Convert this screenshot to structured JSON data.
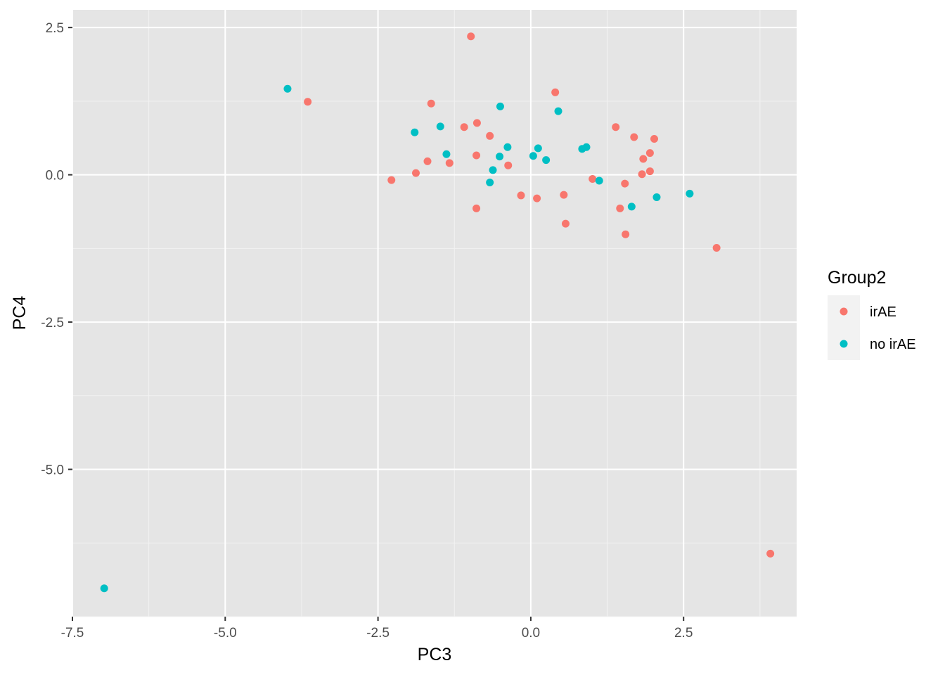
{
  "chart_data": {
    "type": "scatter",
    "xlabel": "PC3",
    "ylabel": "PC4",
    "xlim": [
      -7.5,
      4.35
    ],
    "ylim": [
      -7.5,
      2.8
    ],
    "x_ticks": [
      -7.5,
      -5.0,
      -2.5,
      0.0,
      2.5
    ],
    "x_tick_labels": [
      "-7.5",
      "-5.0",
      "-2.5",
      "0.0",
      "2.5"
    ],
    "y_ticks": [
      2.5,
      0.0,
      -2.5,
      -5.0
    ],
    "y_tick_labels": [
      "2.5",
      "0.0",
      "-2.5",
      "-5.0"
    ],
    "grid": true,
    "background": "#e5e5e5",
    "legend": {
      "title": "Group2",
      "position": "right"
    },
    "series": [
      {
        "name": "irAE",
        "color": "#f8766d",
        "points": [
          [
            -0.98,
            2.35
          ],
          [
            -3.65,
            1.24
          ],
          [
            -1.63,
            1.21
          ],
          [
            0.4,
            1.4
          ],
          [
            -1.09,
            0.81
          ],
          [
            -0.88,
            0.88
          ],
          [
            -0.67,
            0.66
          ],
          [
            1.39,
            0.81
          ],
          [
            1.69,
            0.64
          ],
          [
            2.02,
            0.61
          ],
          [
            -0.89,
            0.33
          ],
          [
            -1.69,
            0.23
          ],
          [
            -1.33,
            0.2
          ],
          [
            -0.37,
            0.16
          ],
          [
            1.84,
            0.27
          ],
          [
            1.95,
            0.37
          ],
          [
            1.82,
            0.01
          ],
          [
            1.95,
            0.06
          ],
          [
            -2.28,
            -0.09
          ],
          [
            -1.88,
            0.03
          ],
          [
            1.01,
            -0.07
          ],
          [
            1.54,
            -0.15
          ],
          [
            -0.16,
            -0.35
          ],
          [
            0.1,
            -0.4
          ],
          [
            0.54,
            -0.34
          ],
          [
            1.46,
            -0.57
          ],
          [
            -0.89,
            -0.57
          ],
          [
            0.57,
            -0.83
          ],
          [
            1.55,
            -1.01
          ],
          [
            3.04,
            -1.24
          ],
          [
            3.92,
            -6.43
          ]
        ]
      },
      {
        "name": "no irAE",
        "color": "#00bfc4",
        "points": [
          [
            -3.98,
            1.46
          ],
          [
            -0.5,
            1.16
          ],
          [
            0.45,
            1.08
          ],
          [
            -1.9,
            0.72
          ],
          [
            -1.48,
            0.82
          ],
          [
            -0.38,
            0.47
          ],
          [
            0.12,
            0.45
          ],
          [
            0.84,
            0.44
          ],
          [
            0.91,
            0.47
          ],
          [
            -1.38,
            0.35
          ],
          [
            -0.51,
            0.31
          ],
          [
            0.04,
            0.32
          ],
          [
            0.25,
            0.25
          ],
          [
            -0.62,
            0.08
          ],
          [
            -0.67,
            -0.13
          ],
          [
            1.12,
            -0.1
          ],
          [
            1.65,
            -0.54
          ],
          [
            2.06,
            -0.38
          ],
          [
            2.6,
            -0.32
          ],
          [
            -6.98,
            -7.02
          ]
        ]
      }
    ]
  }
}
